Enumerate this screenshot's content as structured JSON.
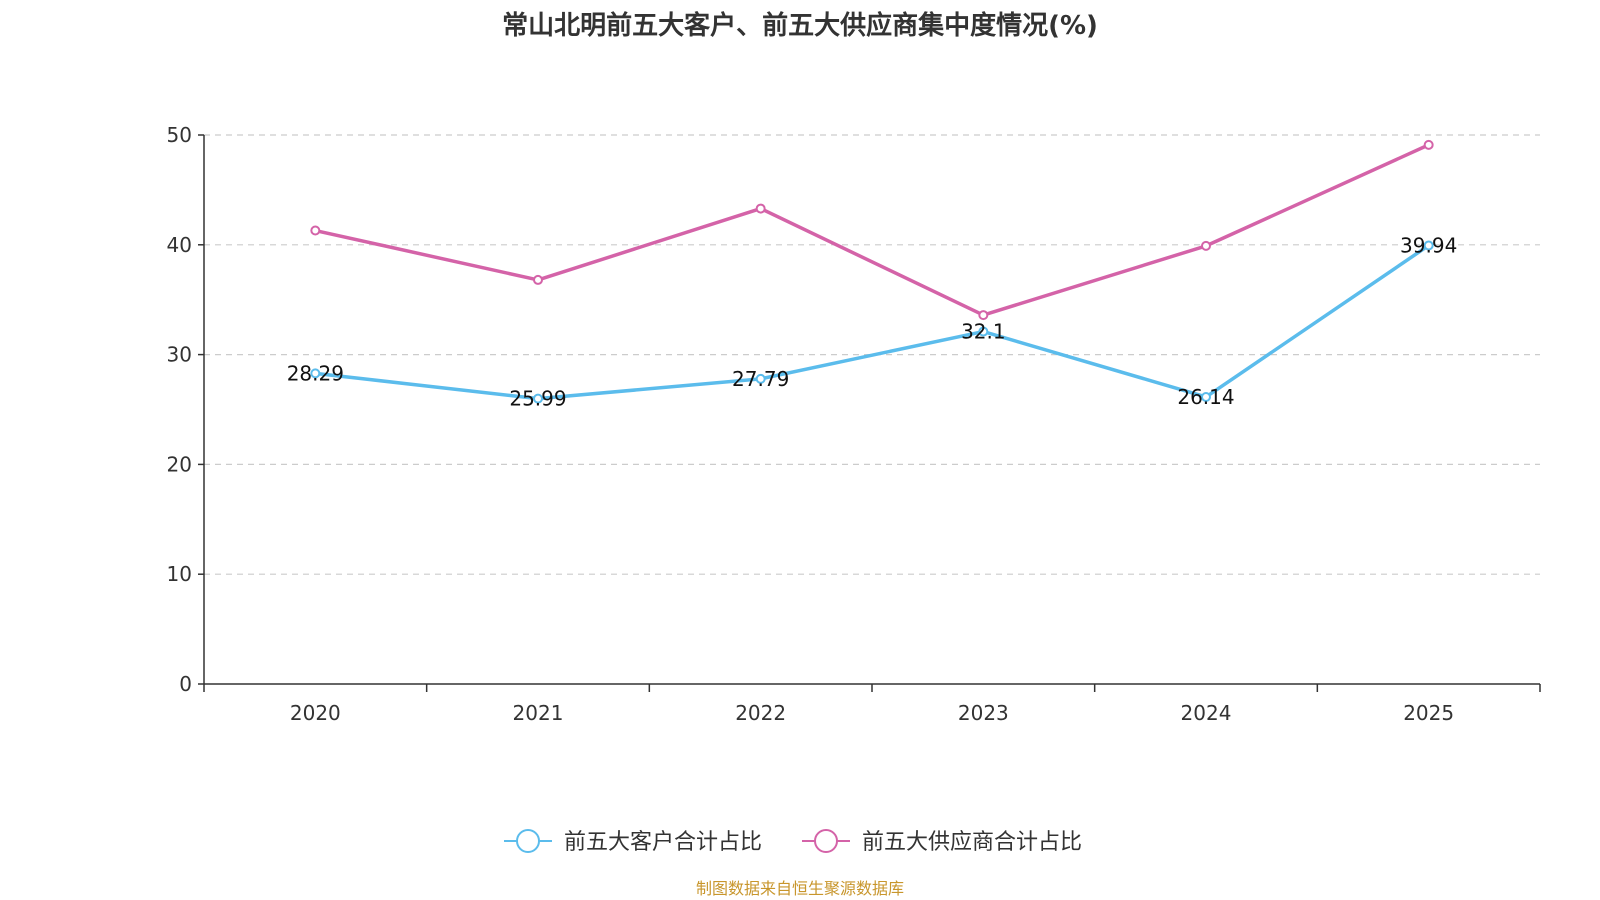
{
  "chart_data": {
    "type": "line",
    "title": "常山北明前五大客户、前五大供应商集中度情况(%)",
    "categories": [
      "2020",
      "2021",
      "2022",
      "2023",
      "2024",
      "2025"
    ],
    "ylim": [
      0,
      50
    ],
    "yticks": [
      "0",
      "10",
      "20",
      "30",
      "40",
      "50"
    ],
    "grid": true,
    "legend_position": "bottom",
    "series": [
      {
        "name": "前五大客户合计占比",
        "color": "#5bbcec",
        "values": [
          28.29,
          25.99,
          27.79,
          32.1,
          26.14,
          39.94
        ],
        "labels": [
          "28.29",
          "25.99",
          "27.79",
          "32.1",
          "26.14",
          "39.94"
        ]
      },
      {
        "name": "前五大供应商合计占比",
        "color": "#d463a8",
        "values": [
          41.3,
          36.8,
          43.3,
          33.6,
          39.9,
          49.1
        ],
        "labels": [
          "",
          "",
          "",
          "",
          "",
          ""
        ]
      }
    ],
    "source": "制图数据来自恒生聚源数据库"
  }
}
